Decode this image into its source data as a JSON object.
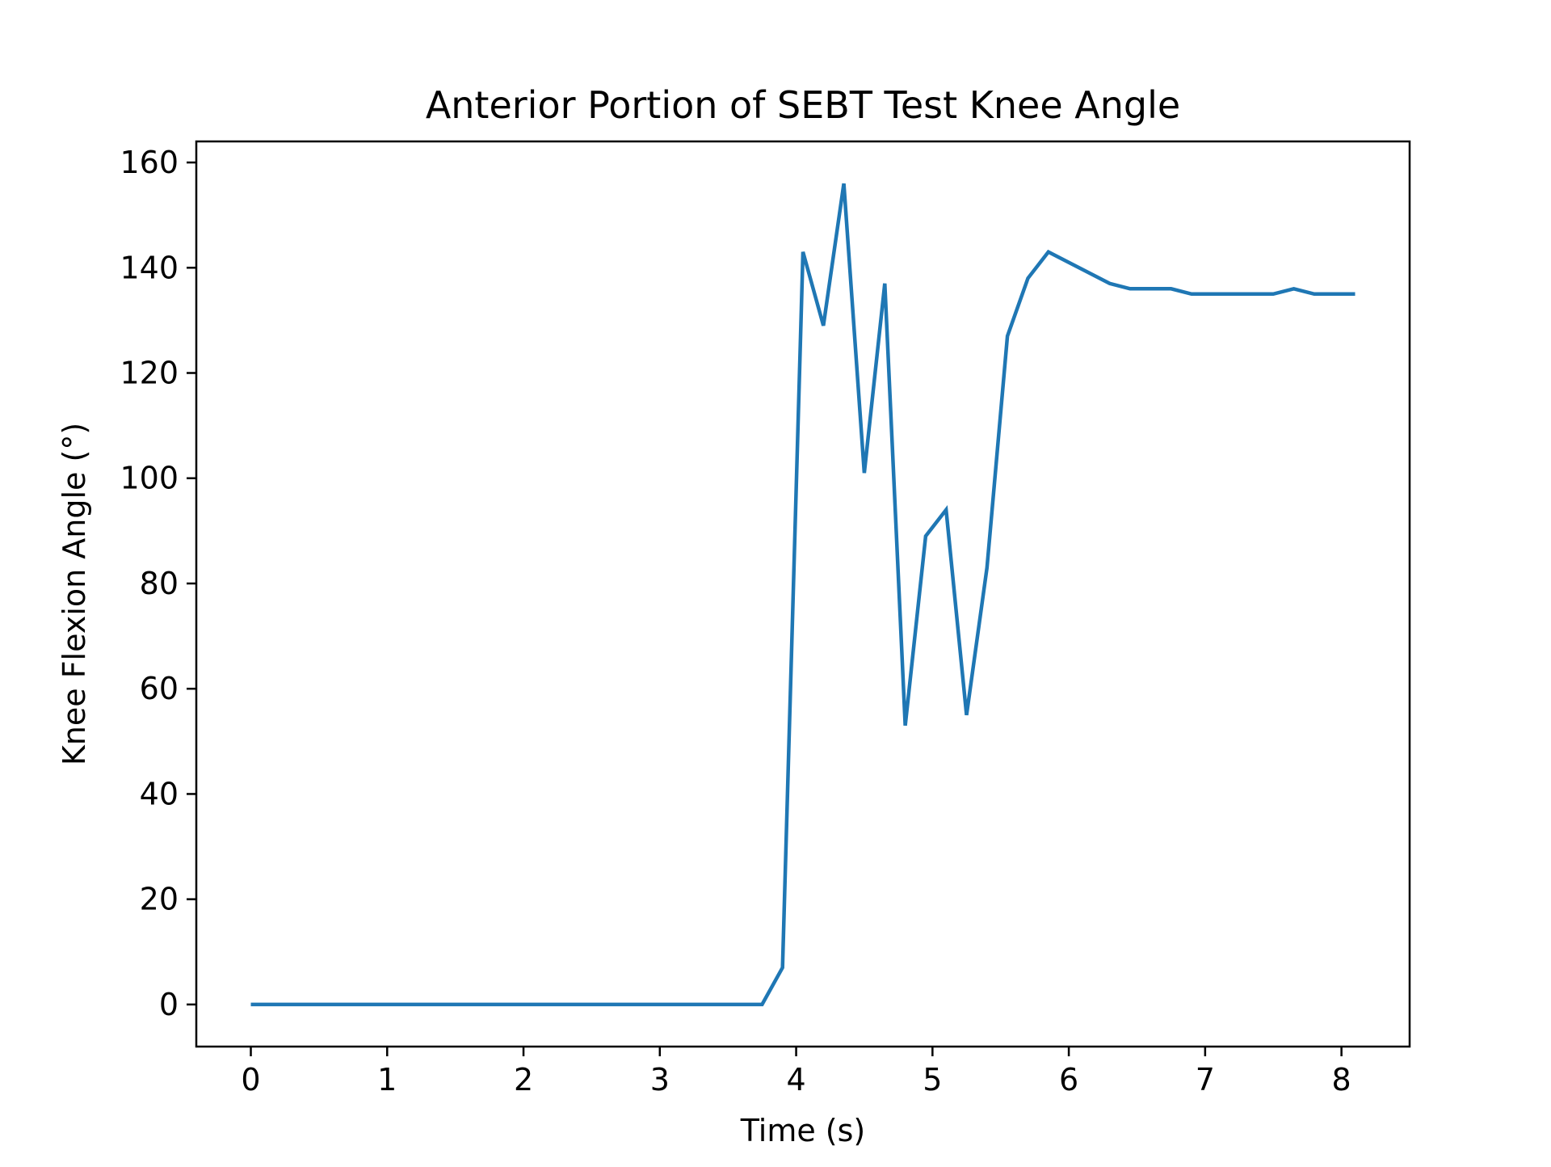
{
  "chart_data": {
    "type": "line",
    "title": "Anterior Portion of SEBT Test Knee Angle",
    "xlabel": "Time (s)",
    "ylabel": "Knee Flexion Angle (°)",
    "xlim": [
      -0.4,
      8.5
    ],
    "ylim": [
      -8,
      164
    ],
    "xticks": [
      0,
      1,
      2,
      3,
      4,
      5,
      6,
      7,
      8
    ],
    "yticks": [
      0,
      20,
      40,
      60,
      80,
      100,
      120,
      140,
      160
    ],
    "grid": false,
    "series": [
      {
        "color": "#1f77b4",
        "x": [
          0.0,
          0.15,
          0.3,
          0.45,
          0.6,
          0.75,
          0.9,
          1.05,
          1.2,
          1.35,
          1.5,
          1.65,
          1.8,
          1.95,
          2.1,
          2.25,
          2.4,
          2.55,
          2.7,
          2.85,
          3.0,
          3.15,
          3.3,
          3.45,
          3.6,
          3.75,
          3.9,
          4.05,
          4.2,
          4.35,
          4.5,
          4.65,
          4.8,
          4.95,
          5.1,
          5.25,
          5.4,
          5.55,
          5.7,
          5.85,
          6.0,
          6.15,
          6.3,
          6.45,
          6.6,
          6.75,
          6.9,
          7.05,
          7.2,
          7.35,
          7.5,
          7.65,
          7.8,
          7.95,
          8.1
        ],
        "y": [
          0,
          0,
          0,
          0,
          0,
          0,
          0,
          0,
          0,
          0,
          0,
          0,
          0,
          0,
          0,
          0,
          0,
          0,
          0,
          0,
          0,
          0,
          0,
          0,
          0,
          0,
          7,
          143,
          129,
          156,
          101,
          137,
          53,
          89,
          94,
          55,
          83,
          127,
          138,
          143,
          141,
          139,
          137,
          136,
          136,
          136,
          135,
          135,
          135,
          135,
          135,
          136,
          135,
          135,
          135
        ]
      }
    ]
  }
}
